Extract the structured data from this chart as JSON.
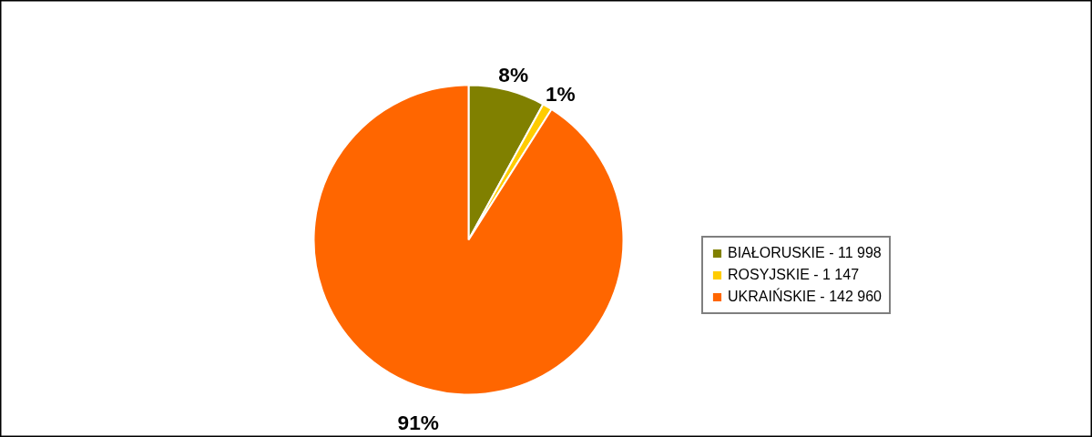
{
  "chart_data": {
    "type": "pie",
    "categories": [
      "BIAŁORUSKIE - 11 998",
      "ROSYJSKIE - 1 147",
      "UKRAIŃSKIE - 142 960"
    ],
    "values": [
      8,
      1,
      91
    ],
    "colors": [
      "#808000",
      "#ffcc00",
      "#ff6600"
    ],
    "value_labels": [
      "8%",
      "1%",
      "91%"
    ],
    "legend": "right"
  }
}
